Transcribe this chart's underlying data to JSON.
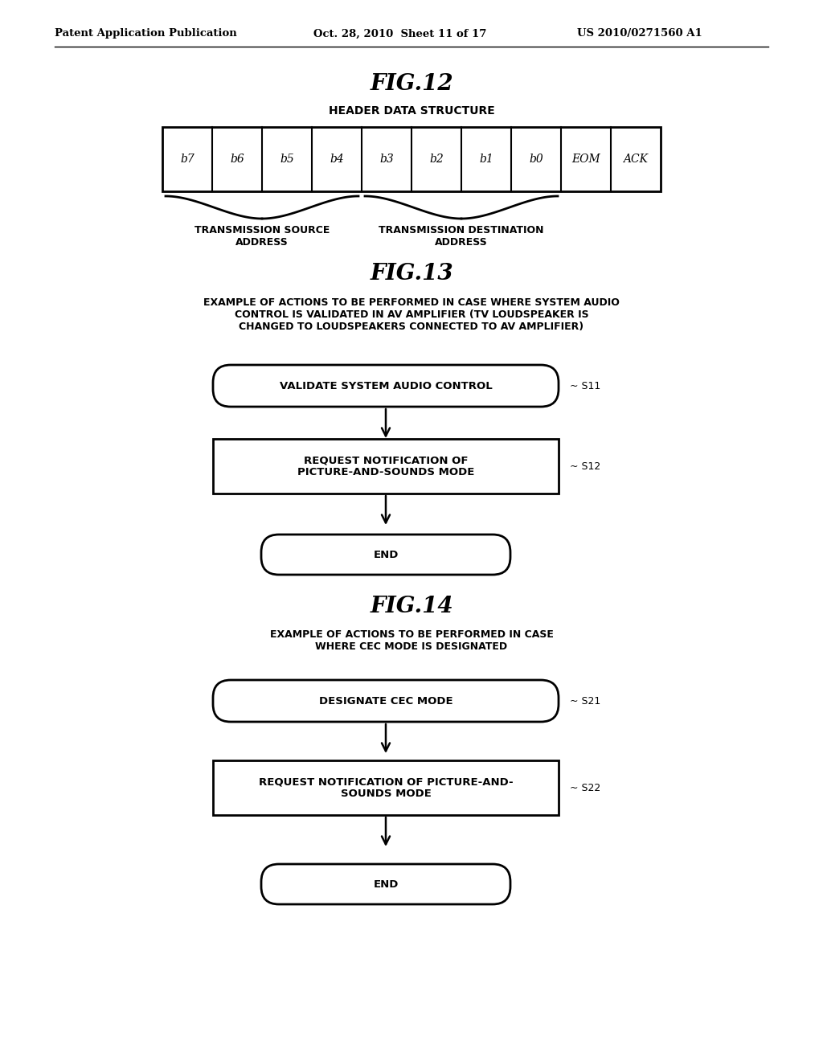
{
  "bg_color": "#ffffff",
  "fig12_title": "FIG.12",
  "fig12_subtitle": "HEADER DATA STRUCTURE",
  "fig12_cells": [
    "b7",
    "b6",
    "b5",
    "b4",
    "b3",
    "b2",
    "b1",
    "b0",
    "EOM",
    "ACK"
  ],
  "fig12_label1": "TRANSMISSION SOURCE\nADDRESS",
  "fig12_label2": "TRANSMISSION DESTINATION\nADDRESS",
  "fig13_title": "FIG.13",
  "fig13_subtitle": "EXAMPLE OF ACTIONS TO BE PERFORMED IN CASE WHERE SYSTEM AUDIO\nCONTROL IS VALIDATED IN AV AMPLIFIER (TV LOUDSPEAKER IS\nCHANGED TO LOUDSPEAKERS CONNECTED TO AV AMPLIFIER)",
  "fig13_s11_label": "VALIDATE SYSTEM AUDIO CONTROL",
  "fig13_s11_step": "S11",
  "fig13_s12_label": "REQUEST NOTIFICATION OF\nPICTURE-AND-SOUNDS MODE",
  "fig13_s12_step": "S12",
  "fig13_end_label": "END",
  "fig14_title": "FIG.14",
  "fig14_subtitle": "EXAMPLE OF ACTIONS TO BE PERFORMED IN CASE\nWHERE CEC MODE IS DESIGNATED",
  "fig14_s21_label": "DESIGNATE CEC MODE",
  "fig14_s21_step": "S21",
  "fig14_s22_label": "REQUEST NOTIFICATION OF PICTURE-AND-\nSOUNDS MODE",
  "fig14_s22_step": "S22",
  "fig14_end_label": "END",
  "header_left": "Patent Application Publication",
  "header_mid": "Oct. 28, 2010  Sheet 11 of 17",
  "header_right": "US 2010/0271560 A1"
}
